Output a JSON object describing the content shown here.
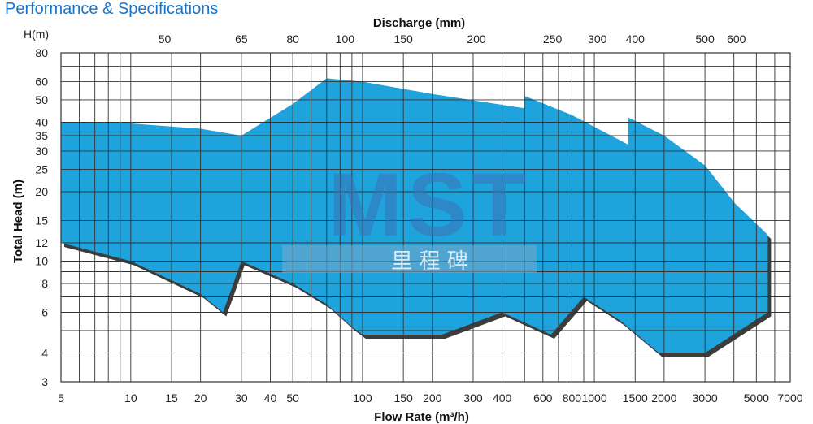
{
  "page": {
    "header_title": "Performance & Specifications"
  },
  "chart_data": {
    "type": "area",
    "title": "",
    "xlabel": "Flow Rate (m³/h)",
    "ylabel": "Total Head (m)",
    "top_axis_label": "Discharge (mm)",
    "y_unit_label": "H(m)",
    "x_scale": "log",
    "y_scale": "log",
    "xlim": [
      5,
      7000
    ],
    "ylim": [
      3,
      80
    ],
    "grid": true,
    "legend": "none",
    "x_ticks": [
      {
        "value": 5,
        "label": "5"
      },
      {
        "value": 10,
        "label": "10"
      },
      {
        "value": 15,
        "label": "15"
      },
      {
        "value": 20,
        "label": "20"
      },
      {
        "value": 30,
        "label": "30"
      },
      {
        "value": 40,
        "label": "40"
      },
      {
        "value": 50,
        "label": "50"
      },
      {
        "value": 100,
        "label": "100"
      },
      {
        "value": 150,
        "label": "150"
      },
      {
        "value": 200,
        "label": "200"
      },
      {
        "value": 300,
        "label": "300"
      },
      {
        "value": 400,
        "label": "400"
      },
      {
        "value": 600,
        "label": "600"
      },
      {
        "value": 800,
        "label": "800"
      },
      {
        "value": 1000,
        "label": "1000"
      },
      {
        "value": 1500,
        "label": "1500"
      },
      {
        "value": 2000,
        "label": "2000"
      },
      {
        "value": 3000,
        "label": "3000"
      },
      {
        "value": 5000,
        "label": "5000"
      },
      {
        "value": 7000,
        "label": "7000"
      }
    ],
    "y_ticks": [
      {
        "value": 3,
        "label": "3"
      },
      {
        "value": 4,
        "label": "4"
      },
      {
        "value": 6,
        "label": "6"
      },
      {
        "value": 8,
        "label": "8"
      },
      {
        "value": 10,
        "label": "10"
      },
      {
        "value": 12,
        "label": "12"
      },
      {
        "value": 15,
        "label": "15"
      },
      {
        "value": 20,
        "label": "20"
      },
      {
        "value": 25,
        "label": "25"
      },
      {
        "value": 30,
        "label": "30"
      },
      {
        "value": 35,
        "label": "35"
      },
      {
        "value": 40,
        "label": "40"
      },
      {
        "value": 50,
        "label": "50"
      },
      {
        "value": 60,
        "label": "60"
      },
      {
        "value": 80,
        "label": "80"
      }
    ],
    "top_ticks": [
      {
        "flow": 14,
        "label": "50"
      },
      {
        "flow": 30,
        "label": "65"
      },
      {
        "flow": 50,
        "label": "80"
      },
      {
        "flow": 84,
        "label": "100"
      },
      {
        "flow": 150,
        "label": "150"
      },
      {
        "flow": 310,
        "label": "200"
      },
      {
        "flow": 660,
        "label": "250"
      },
      {
        "flow": 1030,
        "label": "300"
      },
      {
        "flow": 1500,
        "label": "400"
      },
      {
        "flow": 3000,
        "label": "500"
      },
      {
        "flow": 4100,
        "label": "600"
      }
    ],
    "grid_x_values": [
      5,
      6,
      7,
      8,
      9,
      10,
      15,
      20,
      30,
      40,
      50,
      60,
      70,
      80,
      90,
      100,
      150,
      200,
      300,
      400,
      500,
      600,
      700,
      800,
      900,
      1000,
      1500,
      2000,
      3000,
      4000,
      5000,
      6000,
      7000
    ],
    "grid_y_values": [
      3,
      4,
      5,
      6,
      7,
      8,
      9,
      10,
      12,
      15,
      20,
      25,
      30,
      35,
      40,
      50,
      60,
      70,
      80
    ],
    "series": [
      {
        "fill": "#1fa3dc",
        "upper_boundary": [
          [
            5,
            40
          ],
          [
            10,
            39.5
          ],
          [
            20,
            37.5
          ],
          [
            30,
            35
          ],
          [
            50,
            48
          ],
          [
            70,
            62
          ],
          [
            100,
            60
          ],
          [
            200,
            53
          ],
          [
            500,
            46
          ],
          [
            500,
            52
          ],
          [
            800,
            43
          ],
          [
            1400,
            32
          ],
          [
            1400,
            42
          ],
          [
            2000,
            35
          ],
          [
            3000,
            26
          ],
          [
            4000,
            18
          ],
          [
            5600,
            13
          ]
        ],
        "lower_boundary": [
          [
            5,
            12
          ],
          [
            10,
            10
          ],
          [
            20,
            7.2
          ],
          [
            25,
            6
          ],
          [
            30,
            10
          ],
          [
            50,
            8
          ],
          [
            70,
            6.5
          ],
          [
            90,
            5.2
          ],
          [
            100,
            4.8
          ],
          [
            220,
            4.8
          ],
          [
            400,
            6
          ],
          [
            650,
            4.8
          ],
          [
            900,
            7
          ],
          [
            1300,
            5.5
          ],
          [
            1900,
            4
          ],
          [
            3000,
            4
          ],
          [
            5600,
            6
          ]
        ]
      }
    ],
    "watermark": {
      "text": "MST",
      "subtext": "里 程 碑",
      "color": "#3c73b8",
      "band_color": "#7aa9c8"
    }
  }
}
